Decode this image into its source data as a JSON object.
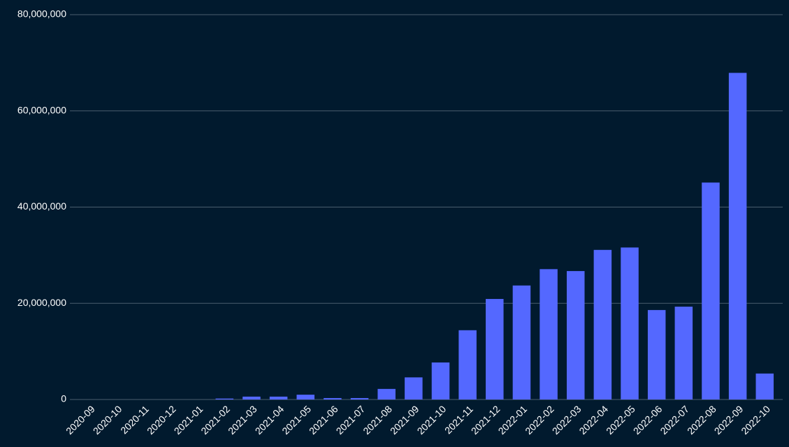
{
  "chart_data": {
    "type": "bar",
    "categories": [
      "2020-09",
      "2020-10",
      "2020-11",
      "2020-12",
      "2021-01",
      "2021-02",
      "2021-03",
      "2021-04",
      "2021-05",
      "2021-06",
      "2021-07",
      "2021-08",
      "2021-09",
      "2021-10",
      "2021-11",
      "2021-12",
      "2022-01",
      "2022-02",
      "2022-03",
      "2022-04",
      "2022-05",
      "2022-06",
      "2022-07",
      "2022-08",
      "2022-09",
      "2022-10"
    ],
    "values": [
      0,
      0,
      0,
      0,
      0,
      200000,
      600000,
      600000,
      1000000,
      300000,
      300000,
      2200000,
      4600000,
      7700000,
      14400000,
      20900000,
      23700000,
      27100000,
      26700000,
      31100000,
      31600000,
      18600000,
      19300000,
      45100000,
      67900000,
      5400000
    ],
    "color": "#5468ff",
    "ylim": [
      0,
      80000000
    ],
    "yticks": [
      0,
      {
        "value": 20000000,
        "label": "20,000,000"
      },
      {
        "value": 40000000,
        "label": "40,000,000"
      },
      {
        "value": 60000000,
        "label": "60,000,000"
      },
      {
        "value": 80000000,
        "label": "80,000,000"
      }
    ],
    "grid": true
  }
}
